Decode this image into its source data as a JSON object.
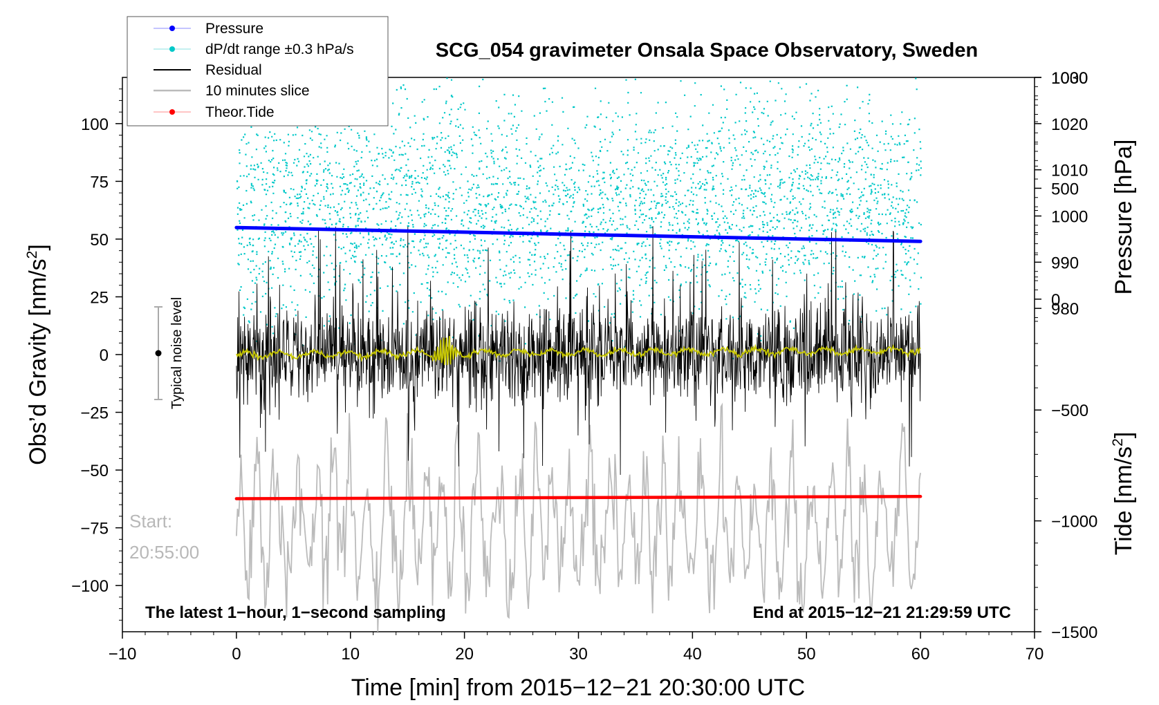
{
  "chart_data": {
    "type": "line",
    "title": "SCG_054 gravimeter Onsala Space Observatory, Sweden",
    "xlabel": "Time [min] from 2015−12−21 20:30:00 UTC",
    "ylabel_left_text": "Obs’d Gravity [nm/s",
    "ylabel_left_sup": "2",
    "ylabel_left_close": "]",
    "ylabel_right_top": "Pressure [hPa]",
    "ylabel_right_bottom_text": "Tide [nm/s",
    "ylabel_right_bottom_sup": "2",
    "ylabel_right_bottom_close": "]",
    "xlim": [
      -10,
      70
    ],
    "ylim_left": [
      -120,
      120
    ],
    "ylim_pressure": [
      910,
      1030
    ],
    "ylim_tide": [
      -1500,
      1000
    ],
    "x_ticks": [
      "−10",
      "0",
      "10",
      "20",
      "30",
      "40",
      "50",
      "60",
      "70"
    ],
    "x_tick_values": [
      -10,
      0,
      10,
      20,
      30,
      40,
      50,
      60,
      70
    ],
    "y_left_ticks": [
      "100",
      "75",
      "50",
      "25",
      "0",
      "−25",
      "−50",
      "−75",
      "−100"
    ],
    "y_left_tick_values": [
      100,
      75,
      50,
      25,
      0,
      -25,
      -50,
      -75,
      -100
    ],
    "y_pressure_ticks": [
      "1030",
      "1020",
      "1010",
      "1000",
      "990",
      "980"
    ],
    "y_pressure_tick_values": [
      1030,
      1020,
      1010,
      1000,
      990,
      980
    ],
    "y_tide_ticks": [
      "1000",
      "500",
      "0",
      "−500",
      "−1000",
      "−1500"
    ],
    "y_tide_tick_values": [
      1000,
      500,
      0,
      -500,
      -1000,
      -1500
    ],
    "series": [
      {
        "name": "Pressure",
        "color": "#0000ff",
        "axis": "pressure",
        "start": 997.5,
        "end": 994.5
      },
      {
        "name": "dP/dt range ±0.3 hPa/s",
        "color": "#00c8c8",
        "axis": "pressure",
        "center": 1003,
        "spread": 22
      },
      {
        "name": "Residual",
        "color": "#000000",
        "axis": "left",
        "typical_amplitude": 20,
        "max_spike": 57
      },
      {
        "name": "10 minutes slice",
        "color": "#bbbbbb",
        "axis": "left",
        "center": -75,
        "typical_amplitude": 28
      },
      {
        "name": "Theor.Tide",
        "color": "#ff0000",
        "axis": "tide",
        "start": -900,
        "end": -890
      }
    ],
    "smoothed_residual_color": "#c8c800",
    "x_start_min": 0,
    "x_end_min": 60,
    "noise_level": {
      "center": 0,
      "half_range": 20
    }
  },
  "legend": [
    {
      "label": "Pressure",
      "color": "#0000ff"
    },
    {
      "label": "dP/dt range ±0.3 hPa/s",
      "color": "#00c8c8"
    },
    {
      "label": "Residual",
      "color": "#000000"
    },
    {
      "label": "10 minutes slice",
      "color": "#bbbbbb"
    },
    {
      "label": "Theor.Tide",
      "color": "#ff0000"
    }
  ],
  "annotations": {
    "start_label": "Start:",
    "start_time": "20:55:00",
    "sampling": "The latest 1−hour, 1−second sampling",
    "end": "End at 2015−12−21 21:29:59 UTC",
    "noise_label": "Typical noise level"
  }
}
